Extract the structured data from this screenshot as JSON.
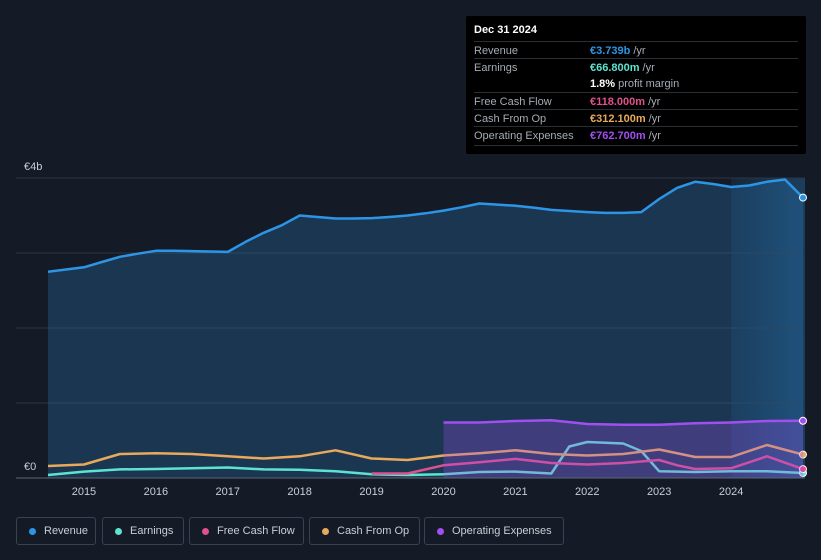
{
  "tooltip": {
    "date": "Dec 31 2024",
    "rows": [
      {
        "label": "Revenue",
        "value": "€3.739b",
        "unit": "/yr",
        "color": "#2d95e6"
      },
      {
        "label": "Earnings",
        "value": "€66.800m",
        "unit": "/yr",
        "color": "#5fe3cf"
      },
      {
        "label": "",
        "value": "1.8%",
        "unit": "profit margin",
        "color": "#ffffff"
      },
      {
        "label": "Free Cash Flow",
        "value": "€118.000m",
        "unit": "/yr",
        "color": "#e0508c"
      },
      {
        "label": "Cash From Op",
        "value": "€312.100m",
        "unit": "/yr",
        "color": "#e8a95c"
      },
      {
        "label": "Operating Expenses",
        "value": "€762.700m",
        "unit": "/yr",
        "color": "#a24ff0"
      }
    ]
  },
  "chart_data": {
    "type": "line",
    "y_top_label": "€4b",
    "y_zero_label": "€0",
    "ylim": [
      0,
      4000
    ],
    "xlim": [
      2014.5,
      2025.0
    ],
    "x_ticks": [
      "2015",
      "2016",
      "2017",
      "2018",
      "2019",
      "2020",
      "2021",
      "2022",
      "2023",
      "2024"
    ],
    "forecast_start": 2024.0,
    "series": [
      {
        "name": "Revenue",
        "color": "#2d95e6",
        "fill": true,
        "points": [
          [
            2014.5,
            2750
          ],
          [
            2014.75,
            2780
          ],
          [
            2015.0,
            2810
          ],
          [
            2015.25,
            2880
          ],
          [
            2015.5,
            2950
          ],
          [
            2015.75,
            2990
          ],
          [
            2016.0,
            3030
          ],
          [
            2016.25,
            3030
          ],
          [
            2016.5,
            3025
          ],
          [
            2016.75,
            3020
          ],
          [
            2017.0,
            3015
          ],
          [
            2017.25,
            3150
          ],
          [
            2017.5,
            3270
          ],
          [
            2017.75,
            3370
          ],
          [
            2018.0,
            3500
          ],
          [
            2018.25,
            3480
          ],
          [
            2018.5,
            3460
          ],
          [
            2018.75,
            3460
          ],
          [
            2019.0,
            3465
          ],
          [
            2019.25,
            3480
          ],
          [
            2019.5,
            3500
          ],
          [
            2019.75,
            3530
          ],
          [
            2020.0,
            3565
          ],
          [
            2020.25,
            3610
          ],
          [
            2020.5,
            3660
          ],
          [
            2020.75,
            3645
          ],
          [
            2021.0,
            3630
          ],
          [
            2021.25,
            3605
          ],
          [
            2021.5,
            3575
          ],
          [
            2021.75,
            3560
          ],
          [
            2022.0,
            3545
          ],
          [
            2022.25,
            3535
          ],
          [
            2022.5,
            3535
          ],
          [
            2022.75,
            3545
          ],
          [
            2023.0,
            3720
          ],
          [
            2023.25,
            3870
          ],
          [
            2023.5,
            3950
          ],
          [
            2023.75,
            3920
          ],
          [
            2024.0,
            3880
          ],
          [
            2024.25,
            3900
          ],
          [
            2024.5,
            3950
          ],
          [
            2024.75,
            3980
          ],
          [
            2025.0,
            3739
          ]
        ]
      },
      {
        "name": "Earnings",
        "color": "#5fe3cf",
        "fill": false,
        "points": [
          [
            2014.5,
            40
          ],
          [
            2015.0,
            85
          ],
          [
            2015.5,
            115
          ],
          [
            2016.0,
            120
          ],
          [
            2016.5,
            130
          ],
          [
            2017.0,
            140
          ],
          [
            2017.5,
            115
          ],
          [
            2018.0,
            110
          ],
          [
            2018.5,
            90
          ],
          [
            2019.0,
            50
          ],
          [
            2019.5,
            40
          ],
          [
            2020.0,
            50
          ],
          [
            2020.5,
            80
          ],
          [
            2021.0,
            85
          ],
          [
            2021.5,
            60
          ],
          [
            2021.75,
            420
          ],
          [
            2022.0,
            480
          ],
          [
            2022.5,
            460
          ],
          [
            2022.75,
            360
          ],
          [
            2023.0,
            90
          ],
          [
            2023.5,
            80
          ],
          [
            2024.0,
            90
          ],
          [
            2024.5,
            90
          ],
          [
            2025.0,
            66.8
          ]
        ]
      },
      {
        "name": "Free Cash Flow",
        "color": "#e0508c",
        "fill": false,
        "points": [
          [
            2019.0,
            60
          ],
          [
            2019.5,
            60
          ],
          [
            2020.0,
            170
          ],
          [
            2020.5,
            210
          ],
          [
            2021.0,
            255
          ],
          [
            2021.5,
            200
          ],
          [
            2022.0,
            180
          ],
          [
            2022.5,
            200
          ],
          [
            2023.0,
            240
          ],
          [
            2023.25,
            170
          ],
          [
            2023.5,
            120
          ],
          [
            2024.0,
            130
          ],
          [
            2024.5,
            290
          ],
          [
            2025.0,
            118
          ]
        ]
      },
      {
        "name": "Cash From Op",
        "color": "#e8a95c",
        "fill": false,
        "points": [
          [
            2014.5,
            160
          ],
          [
            2015.0,
            180
          ],
          [
            2015.5,
            320
          ],
          [
            2016.0,
            330
          ],
          [
            2016.5,
            320
          ],
          [
            2017.0,
            290
          ],
          [
            2017.5,
            260
          ],
          [
            2018.0,
            290
          ],
          [
            2018.5,
            370
          ],
          [
            2019.0,
            260
          ],
          [
            2019.5,
            240
          ],
          [
            2020.0,
            300
          ],
          [
            2020.5,
            330
          ],
          [
            2021.0,
            370
          ],
          [
            2021.5,
            320
          ],
          [
            2022.0,
            300
          ],
          [
            2022.5,
            320
          ],
          [
            2023.0,
            380
          ],
          [
            2023.5,
            280
          ],
          [
            2024.0,
            280
          ],
          [
            2024.5,
            440
          ],
          [
            2025.0,
            312.1
          ]
        ]
      },
      {
        "name": "Operating Expenses",
        "color": "#a24ff0",
        "fill": true,
        "points": [
          [
            2020.0,
            740
          ],
          [
            2020.5,
            740
          ],
          [
            2021.0,
            760
          ],
          [
            2021.5,
            770
          ],
          [
            2022.0,
            720
          ],
          [
            2022.5,
            710
          ],
          [
            2023.0,
            710
          ],
          [
            2023.5,
            730
          ],
          [
            2024.0,
            740
          ],
          [
            2024.5,
            760
          ],
          [
            2025.0,
            762.7
          ]
        ]
      }
    ]
  },
  "legend": [
    {
      "label": "Revenue",
      "color": "#2d95e6"
    },
    {
      "label": "Earnings",
      "color": "#5fe3cf"
    },
    {
      "label": "Free Cash Flow",
      "color": "#e0508c"
    },
    {
      "label": "Cash From Op",
      "color": "#e8a95c"
    },
    {
      "label": "Operating Expenses",
      "color": "#a24ff0"
    }
  ]
}
